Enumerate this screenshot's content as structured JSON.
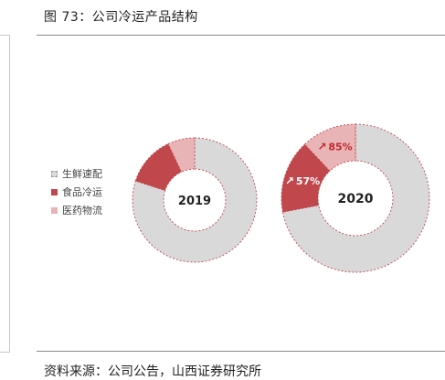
{
  "figure_title": "图 73：公司冷运产品结构",
  "source_note": "资料来源：公司公告，山西证券研究所",
  "chart_data": {
    "type": "pie",
    "style": "donut",
    "legend_position": "left",
    "series_labels": [
      "生鲜速配",
      "食品冷运",
      "医药物流"
    ],
    "series_colors": [
      "#d9d9d9",
      "#c0474c",
      "#e8b4b6"
    ],
    "charts": [
      {
        "label": "2019",
        "values": [
          80,
          13,
          7
        ],
        "annotations": []
      },
      {
        "label": "2020",
        "values": [
          72,
          16,
          12
        ],
        "annotations": [
          {
            "text": "57%",
            "series": "食品冷运"
          },
          {
            "text": "85%",
            "series": "医药物流"
          }
        ]
      }
    ]
  }
}
